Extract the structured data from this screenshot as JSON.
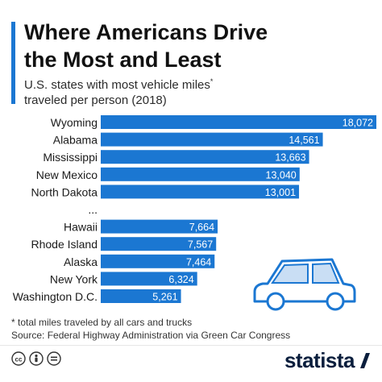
{
  "title_line1": "Where Americans Drive",
  "title_line2": "the Most and Least",
  "subtitle_line1": "U.S. states with most vehicle miles",
  "subtitle_sup": "*",
  "subtitle_line2": "traveled per person (2018)",
  "footnote_line1": "* total miles traveled by all cars and trucks",
  "footnote_line2": "Source: Federal Highway Administration via Green Car Congress",
  "brand": "statista",
  "license_icons": [
    "cc-icon",
    "attribution-icon",
    "noderivs-icon"
  ],
  "colors": {
    "bar": "#1b77d2",
    "title_accent": "#1b77d2",
    "car": "#1b77d2",
    "car_window": "#c9def4"
  },
  "chart_data": {
    "type": "bar",
    "orientation": "horizontal",
    "categories": [
      "Wyoming",
      "Alabama",
      "Mississippi",
      "New Mexico",
      "North Dakota",
      "...",
      "Hawaii",
      "Rhode Island",
      "Alaska",
      "New York",
      "Washington D.C."
    ],
    "values": [
      18072,
      14561,
      13663,
      13040,
      13001,
      null,
      7664,
      7567,
      7464,
      6324,
      5261
    ],
    "value_labels": [
      "18,072",
      "14,561",
      "13,663",
      "13,040",
      "13,001",
      "",
      "7,664",
      "7,567",
      "7,464",
      "6,324",
      "5,261"
    ],
    "xlim": [
      0,
      18072
    ],
    "grid": false,
    "legend": "none"
  }
}
